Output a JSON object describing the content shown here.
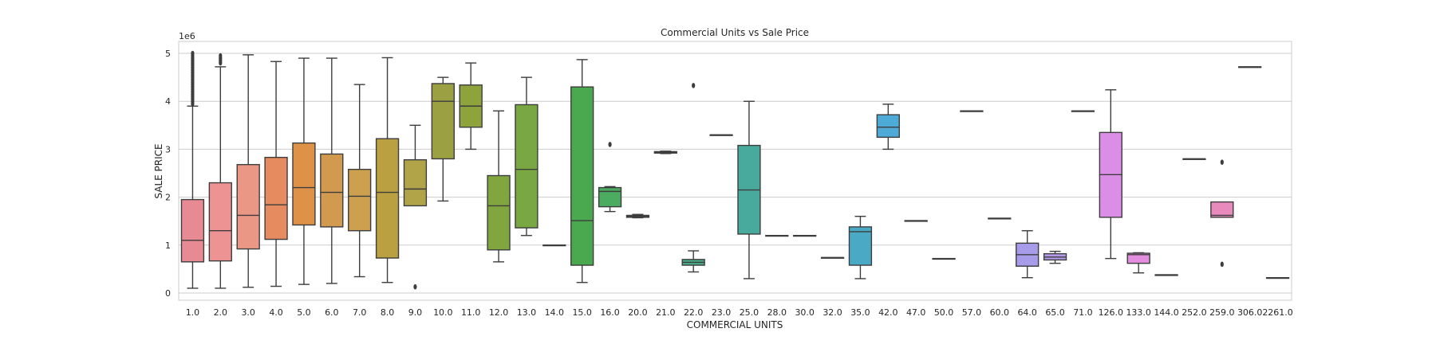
{
  "chart_data": {
    "type": "box",
    "title": "Commercial Units vs Sale Price",
    "xlabel": "COMMERCIAL UNITS",
    "ylabel": "SALE PRICE",
    "y_scale_label": "1e6",
    "ylim": [
      -0.15,
      5.25
    ],
    "yticks": [
      {
        "value": 0,
        "label": "0"
      },
      {
        "value": 1,
        "label": "1"
      },
      {
        "value": 2,
        "label": "2"
      },
      {
        "value": 3,
        "label": "3"
      },
      {
        "value": 4,
        "label": "4"
      },
      {
        "value": 5,
        "label": "5"
      }
    ],
    "grid": true,
    "style": "seaborn whitegrid",
    "categories": [
      "1.0",
      "2.0",
      "3.0",
      "4.0",
      "5.0",
      "6.0",
      "7.0",
      "8.0",
      "9.0",
      "10.0",
      "11.0",
      "12.0",
      "13.0",
      "14.0",
      "15.0",
      "16.0",
      "20.0",
      "21.0",
      "22.0",
      "23.0",
      "25.0",
      "28.0",
      "30.0",
      "32.0",
      "35.0",
      "42.0",
      "47.0",
      "50.0",
      "57.0",
      "60.0",
      "64.0",
      "65.0",
      "71.0",
      "126.0",
      "133.0",
      "144.0",
      "252.0",
      "259.0",
      "306.0",
      "2261.0"
    ],
    "boxes": [
      {
        "wl": 0.1,
        "q1": 0.65,
        "med": 1.1,
        "q3": 1.95,
        "wh": 3.9,
        "outliers": [
          3.95,
          4.0,
          4.05,
          4.1,
          4.15,
          4.2,
          4.25,
          4.3,
          4.35,
          4.4,
          4.45,
          4.5,
          4.55,
          4.6,
          4.65,
          4.7,
          4.75,
          4.8,
          4.85,
          4.9,
          4.95,
          5.0
        ],
        "color": "#e88a94"
      },
      {
        "wl": 0.1,
        "q1": 0.67,
        "med": 1.3,
        "q3": 2.3,
        "wh": 4.72,
        "outliers": [
          4.8,
          4.85,
          4.9,
          4.95
        ],
        "color": "#ee9394"
      },
      {
        "wl": 0.12,
        "q1": 0.92,
        "med": 1.62,
        "q3": 2.68,
        "wh": 4.97,
        "outliers": [],
        "color": "#eb9785"
      },
      {
        "wl": 0.14,
        "q1": 1.12,
        "med": 1.84,
        "q3": 2.83,
        "wh": 4.83,
        "outliers": [],
        "color": "#e58b5f"
      },
      {
        "wl": 0.18,
        "q1": 1.42,
        "med": 2.2,
        "q3": 3.13,
        "wh": 4.9,
        "outliers": [],
        "color": "#de9248"
      },
      {
        "wl": 0.2,
        "q1": 1.38,
        "med": 2.1,
        "q3": 2.9,
        "wh": 4.9,
        "outliers": [],
        "color": "#d29a4e"
      },
      {
        "wl": 0.34,
        "q1": 1.3,
        "med": 2.02,
        "q3": 2.58,
        "wh": 4.35,
        "outliers": [],
        "color": "#cda050"
      },
      {
        "wl": 0.22,
        "q1": 0.73,
        "med": 2.1,
        "q3": 3.22,
        "wh": 4.91,
        "outliers": [],
        "color": "#baa040"
      },
      {
        "wl": 1.82,
        "q1": 1.82,
        "med": 2.17,
        "q3": 2.78,
        "wh": 3.5,
        "outliers": [
          0.13
        ],
        "color": "#b0a348"
      },
      {
        "wl": 1.92,
        "q1": 2.8,
        "med": 4.0,
        "q3": 4.37,
        "wh": 4.5,
        "outliers": [],
        "color": "#9ba043"
      },
      {
        "wl": 3.0,
        "q1": 3.46,
        "med": 3.9,
        "q3": 4.34,
        "wh": 4.8,
        "outliers": [],
        "color": "#8fa33c"
      },
      {
        "wl": 0.65,
        "q1": 0.9,
        "med": 1.82,
        "q3": 2.45,
        "wh": 3.8,
        "outliers": [],
        "color": "#80a63f"
      },
      {
        "wl": 1.2,
        "q1": 1.36,
        "med": 2.58,
        "q3": 3.93,
        "wh": 4.5,
        "outliers": [],
        "color": "#79a843"
      },
      {
        "wl": 1.0,
        "q1": 1.0,
        "med": 1.0,
        "q3": 1.0,
        "wh": 1.0,
        "outliers": [],
        "color": "#5ea945"
      },
      {
        "wl": 0.22,
        "q1": 0.58,
        "med": 1.51,
        "q3": 4.3,
        "wh": 4.87,
        "outliers": [],
        "color": "#4aa84f"
      },
      {
        "wl": 1.7,
        "q1": 1.8,
        "med": 2.12,
        "q3": 2.2,
        "wh": 2.22,
        "outliers": [
          3.1
        ],
        "color": "#4bab60"
      },
      {
        "wl": 1.57,
        "q1": 1.58,
        "med": 1.6,
        "q3": 1.62,
        "wh": 1.64,
        "outliers": [],
        "color": "#4aac6e"
      },
      {
        "wl": 2.91,
        "q1": 2.92,
        "med": 2.93,
        "q3": 2.95,
        "wh": 2.96,
        "outliers": [],
        "color": "#48ab7c"
      },
      {
        "wl": 0.44,
        "q1": 0.58,
        "med": 0.64,
        "q3": 0.7,
        "wh": 0.88,
        "outliers": [
          4.33
        ],
        "color": "#48ab86"
      },
      {
        "wl": 3.3,
        "q1": 3.3,
        "med": 3.3,
        "q3": 3.3,
        "wh": 3.3,
        "outliers": [],
        "color": "#47aa92"
      },
      {
        "wl": 0.3,
        "q1": 1.23,
        "med": 2.15,
        "q3": 3.08,
        "wh": 4.0,
        "outliers": [],
        "color": "#47aa9c"
      },
      {
        "wl": 1.2,
        "q1": 1.2,
        "med": 1.2,
        "q3": 1.2,
        "wh": 1.2,
        "outliers": [],
        "color": "#47aaa6"
      },
      {
        "wl": 1.2,
        "q1": 1.2,
        "med": 1.2,
        "q3": 1.2,
        "wh": 1.2,
        "outliers": [],
        "color": "#49a9b0"
      },
      {
        "wl": 0.74,
        "q1": 0.74,
        "med": 0.74,
        "q3": 0.74,
        "wh": 0.74,
        "outliers": [],
        "color": "#4aa9b9"
      },
      {
        "wl": 0.3,
        "q1": 0.58,
        "med": 1.28,
        "q3": 1.38,
        "wh": 1.6,
        "outliers": [],
        "color": "#4aaac6"
      },
      {
        "wl": 3.0,
        "q1": 3.25,
        "med": 3.46,
        "q3": 3.72,
        "wh": 3.94,
        "outliers": [],
        "color": "#4eaad6"
      },
      {
        "wl": 1.51,
        "q1": 1.51,
        "med": 1.51,
        "q3": 1.51,
        "wh": 1.51,
        "outliers": [],
        "color": "#55a4dc"
      },
      {
        "wl": 0.72,
        "q1": 0.72,
        "med": 0.72,
        "q3": 0.72,
        "wh": 0.72,
        "outliers": [],
        "color": "#6aa0df"
      },
      {
        "wl": 3.8,
        "q1": 3.8,
        "med": 3.8,
        "q3": 3.8,
        "wh": 3.8,
        "outliers": [],
        "color": "#7c9ce2"
      },
      {
        "wl": 1.56,
        "q1": 1.56,
        "med": 1.56,
        "q3": 1.56,
        "wh": 1.56,
        "outliers": [],
        "color": "#8b9ce5"
      },
      {
        "wl": 0.32,
        "q1": 0.56,
        "med": 0.8,
        "q3": 1.04,
        "wh": 1.3,
        "outliers": [],
        "color": "#a69ce9"
      },
      {
        "wl": 0.62,
        "q1": 0.69,
        "med": 0.75,
        "q3": 0.82,
        "wh": 0.87,
        "outliers": [],
        "color": "#b29ae8"
      },
      {
        "wl": 3.8,
        "q1": 3.8,
        "med": 3.8,
        "q3": 3.8,
        "wh": 3.8,
        "outliers": [],
        "color": "#c495e9"
      },
      {
        "wl": 0.72,
        "q1": 1.58,
        "med": 2.47,
        "q3": 3.35,
        "wh": 4.24,
        "outliers": [],
        "color": "#db8ee6"
      },
      {
        "wl": 0.42,
        "q1": 0.62,
        "med": 0.8,
        "q3": 0.83,
        "wh": 0.84,
        "outliers": [],
        "color": "#e38ddf"
      },
      {
        "wl": 0.38,
        "q1": 0.38,
        "med": 0.38,
        "q3": 0.38,
        "wh": 0.38,
        "outliers": [],
        "color": "#e690d4"
      },
      {
        "wl": 2.8,
        "q1": 2.8,
        "med": 2.8,
        "q3": 2.8,
        "wh": 2.8,
        "outliers": [],
        "color": "#e792c8"
      },
      {
        "wl": 1.58,
        "q1": 1.58,
        "med": 1.62,
        "q3": 1.9,
        "wh": 1.9,
        "outliers": [
          0.6,
          2.73
        ],
        "color": "#e88bbc"
      },
      {
        "wl": 4.72,
        "q1": 4.72,
        "med": 4.72,
        "q3": 4.72,
        "wh": 4.72,
        "outliers": [],
        "color": "#e88ab2"
      },
      {
        "wl": 0.32,
        "q1": 0.32,
        "med": 0.32,
        "q3": 0.32,
        "wh": 0.32,
        "outliers": [],
        "color": "#e78aa8"
      }
    ]
  }
}
